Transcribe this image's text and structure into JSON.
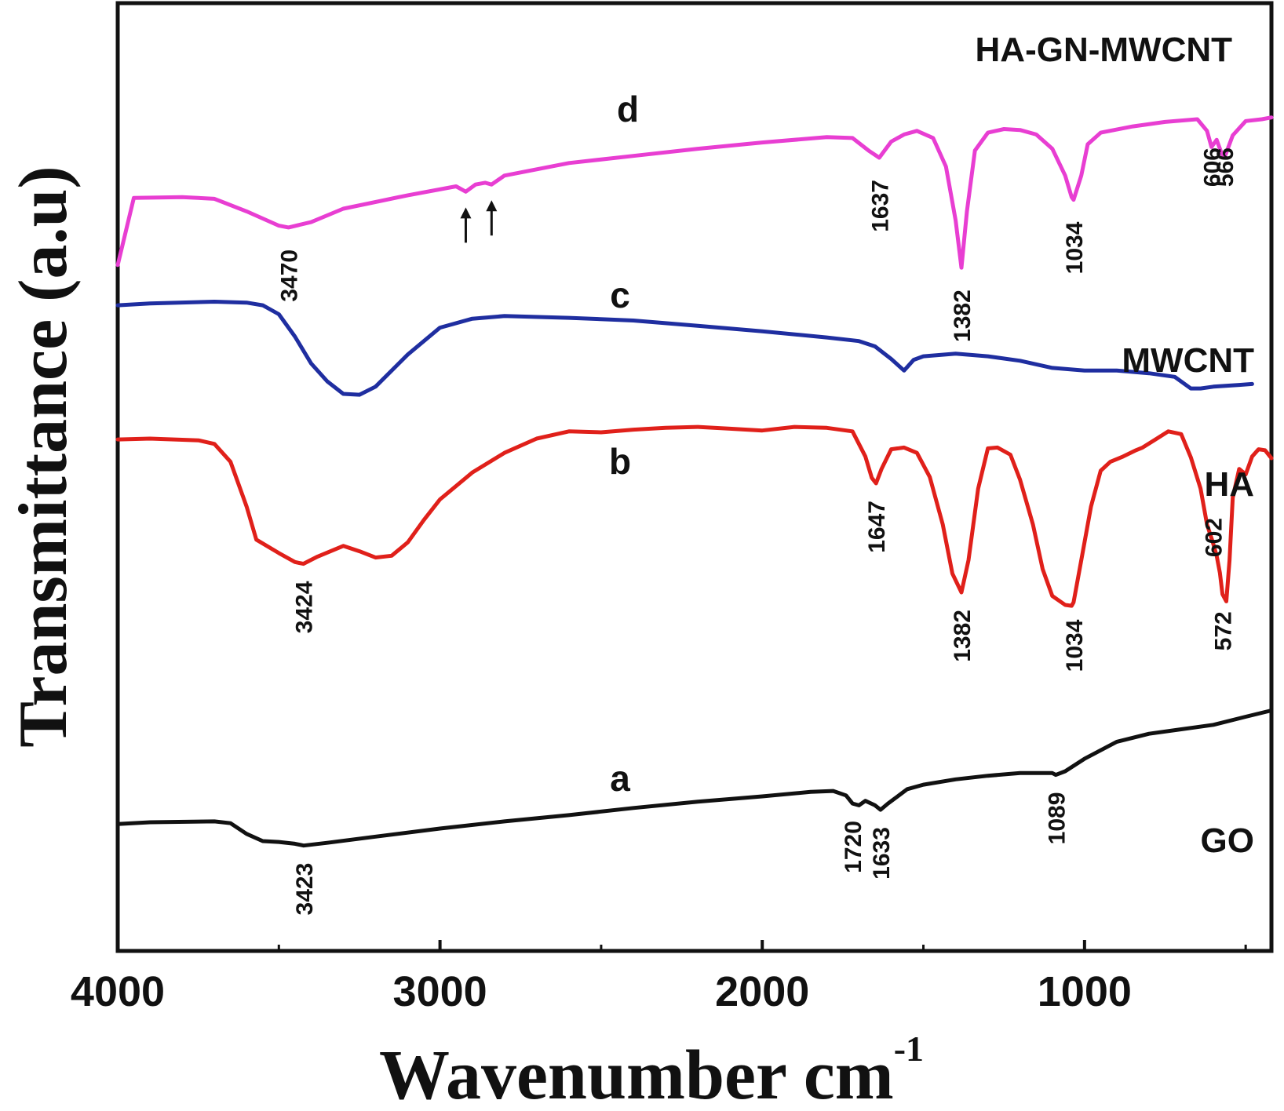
{
  "chart_data": {
    "type": "line",
    "title": "",
    "xlabel": "Wavenumber cm",
    "xlabel_superscript": "-1",
    "ylabel": "Transmittance (a.u)",
    "xlim": [
      4000,
      420
    ],
    "x_reversed": true,
    "ylim": [
      0,
      100
    ],
    "grid": false,
    "x_ticks": [
      {
        "value": 4000,
        "label": "4000"
      },
      {
        "value": 3000,
        "label": "3000"
      },
      {
        "value": 2000,
        "label": "2000"
      },
      {
        "value": 1000,
        "label": "1000"
      }
    ],
    "series": [
      {
        "id": "d",
        "letter": "d",
        "name": "HA-GN-MWCNT",
        "color": "#e83ed2",
        "points": [
          [
            4000,
            73
          ],
          [
            3950,
            80.5
          ],
          [
            3800,
            80.6
          ],
          [
            3700,
            80.4
          ],
          [
            3600,
            79
          ],
          [
            3500,
            77.4
          ],
          [
            3470,
            77.2
          ],
          [
            3400,
            77.8
          ],
          [
            3300,
            79.3
          ],
          [
            3100,
            80.8
          ],
          [
            2950,
            81.8
          ],
          [
            2920,
            81.2
          ],
          [
            2890,
            82
          ],
          [
            2860,
            82.2
          ],
          [
            2840,
            82
          ],
          [
            2800,
            83
          ],
          [
            2600,
            84.4
          ],
          [
            2400,
            85.2
          ],
          [
            2200,
            86
          ],
          [
            2000,
            86.7
          ],
          [
            1800,
            87.3
          ],
          [
            1720,
            87.2
          ],
          [
            1670,
            85.8
          ],
          [
            1637,
            85
          ],
          [
            1600,
            86.8
          ],
          [
            1560,
            87.6
          ],
          [
            1520,
            88
          ],
          [
            1470,
            87.2
          ],
          [
            1430,
            84
          ],
          [
            1400,
            78
          ],
          [
            1382,
            72.7
          ],
          [
            1365,
            79
          ],
          [
            1340,
            85.8
          ],
          [
            1300,
            87.8
          ],
          [
            1250,
            88.2
          ],
          [
            1200,
            88.1
          ],
          [
            1150,
            87.6
          ],
          [
            1100,
            86
          ],
          [
            1060,
            83
          ],
          [
            1040,
            80.6
          ],
          [
            1034,
            80.3
          ],
          [
            1010,
            83
          ],
          [
            990,
            86.5
          ],
          [
            950,
            87.8
          ],
          [
            850,
            88.5
          ],
          [
            750,
            89
          ],
          [
            650,
            89.3
          ],
          [
            620,
            88
          ],
          [
            606,
            86.2
          ],
          [
            590,
            87
          ],
          [
            575,
            85.5
          ],
          [
            566,
            85
          ],
          [
            540,
            87.5
          ],
          [
            500,
            89.1
          ],
          [
            450,
            89.3
          ],
          [
            420,
            89.5
          ]
        ]
      },
      {
        "id": "c",
        "letter": "c",
        "name": "MWCNT",
        "color": "#1f2ea0",
        "points": [
          [
            4000,
            68.5
          ],
          [
            3900,
            68.7
          ],
          [
            3700,
            68.9
          ],
          [
            3600,
            68.8
          ],
          [
            3550,
            68.5
          ],
          [
            3500,
            67.5
          ],
          [
            3450,
            65
          ],
          [
            3400,
            62
          ],
          [
            3350,
            60
          ],
          [
            3300,
            58.6
          ],
          [
            3250,
            58.5
          ],
          [
            3200,
            59.4
          ],
          [
            3100,
            63
          ],
          [
            3000,
            66
          ],
          [
            2900,
            67
          ],
          [
            2800,
            67.3
          ],
          [
            2600,
            67.1
          ],
          [
            2400,
            66.8
          ],
          [
            2200,
            66.2
          ],
          [
            2000,
            65.6
          ],
          [
            1800,
            64.9
          ],
          [
            1700,
            64.5
          ],
          [
            1650,
            63.9
          ],
          [
            1600,
            62.5
          ],
          [
            1560,
            61.2
          ],
          [
            1530,
            62.4
          ],
          [
            1500,
            62.8
          ],
          [
            1400,
            63.1
          ],
          [
            1300,
            62.8
          ],
          [
            1200,
            62.3
          ],
          [
            1100,
            61.5
          ],
          [
            1000,
            61.2
          ],
          [
            900,
            61.2
          ],
          [
            800,
            60.9
          ],
          [
            720,
            60.5
          ],
          [
            670,
            59.2
          ],
          [
            640,
            59.2
          ],
          [
            600,
            59.4
          ],
          [
            520,
            59.6
          ],
          [
            480,
            59.7
          ]
        ]
      },
      {
        "id": "b",
        "letter": "b",
        "name": "HA",
        "color": "#e0201a",
        "points": [
          [
            4000,
            53.5
          ],
          [
            3900,
            53.6
          ],
          [
            3750,
            53.4
          ],
          [
            3700,
            53
          ],
          [
            3650,
            51
          ],
          [
            3600,
            46
          ],
          [
            3570,
            42.3
          ],
          [
            3500,
            40.8
          ],
          [
            3450,
            39.8
          ],
          [
            3424,
            39.6
          ],
          [
            3380,
            40.4
          ],
          [
            3300,
            41.6
          ],
          [
            3250,
            41
          ],
          [
            3200,
            40.3
          ],
          [
            3150,
            40.5
          ],
          [
            3100,
            42
          ],
          [
            3050,
            44.5
          ],
          [
            3000,
            46.8
          ],
          [
            2900,
            49.8
          ],
          [
            2800,
            52
          ],
          [
            2700,
            53.6
          ],
          [
            2600,
            54.4
          ],
          [
            2500,
            54.3
          ],
          [
            2400,
            54.6
          ],
          [
            2300,
            54.8
          ],
          [
            2200,
            54.9
          ],
          [
            2100,
            54.7
          ],
          [
            2000,
            54.5
          ],
          [
            1900,
            54.9
          ],
          [
            1800,
            54.8
          ],
          [
            1720,
            54.4
          ],
          [
            1680,
            51.6
          ],
          [
            1660,
            49.2
          ],
          [
            1647,
            48.6
          ],
          [
            1630,
            50.2
          ],
          [
            1600,
            52.4
          ],
          [
            1560,
            52.6
          ],
          [
            1520,
            52
          ],
          [
            1480,
            49.3
          ],
          [
            1440,
            44
          ],
          [
            1410,
            38.5
          ],
          [
            1382,
            36.4
          ],
          [
            1360,
            40
          ],
          [
            1330,
            48
          ],
          [
            1300,
            52.5
          ],
          [
            1270,
            52.6
          ],
          [
            1230,
            51.8
          ],
          [
            1200,
            49
          ],
          [
            1160,
            44
          ],
          [
            1130,
            39
          ],
          [
            1100,
            36
          ],
          [
            1060,
            35
          ],
          [
            1040,
            34.9
          ],
          [
            1034,
            35.3
          ],
          [
            1010,
            40
          ],
          [
            980,
            46
          ],
          [
            950,
            50
          ],
          [
            920,
            51
          ],
          [
            880,
            51.6
          ],
          [
            840,
            52.3
          ],
          [
            820,
            52.6
          ],
          [
            780,
            53.5
          ],
          [
            740,
            54.4
          ],
          [
            700,
            54.1
          ],
          [
            670,
            51.5
          ],
          [
            640,
            48
          ],
          [
            620,
            44
          ],
          [
            602,
            42
          ],
          [
            590,
            40.5
          ],
          [
            580,
            38.6
          ],
          [
            572,
            36.2
          ],
          [
            560,
            35.4
          ],
          [
            550,
            40
          ],
          [
            540,
            47
          ],
          [
            520,
            50.2
          ],
          [
            500,
            49.6
          ],
          [
            480,
            51.6
          ],
          [
            460,
            52.4
          ],
          [
            440,
            52.3
          ],
          [
            420,
            51.4
          ]
        ]
      },
      {
        "id": "a",
        "letter": "a",
        "name": "GO",
        "color": "#111111",
        "points": [
          [
            4000,
            10.5
          ],
          [
            3900,
            10.7
          ],
          [
            3700,
            10.8
          ],
          [
            3650,
            10.6
          ],
          [
            3600,
            9.4
          ],
          [
            3550,
            8.6
          ],
          [
            3500,
            8.5
          ],
          [
            3450,
            8.3
          ],
          [
            3423,
            8.1
          ],
          [
            3350,
            8.4
          ],
          [
            3200,
            9.1
          ],
          [
            3000,
            10
          ],
          [
            2800,
            10.8
          ],
          [
            2600,
            11.5
          ],
          [
            2400,
            12.3
          ],
          [
            2200,
            13
          ],
          [
            2000,
            13.6
          ],
          [
            1850,
            14.1
          ],
          [
            1780,
            14.2
          ],
          [
            1740,
            13.7
          ],
          [
            1720,
            12.8
          ],
          [
            1700,
            12.6
          ],
          [
            1680,
            13.1
          ],
          [
            1650,
            12.6
          ],
          [
            1633,
            12.1
          ],
          [
            1610,
            12.8
          ],
          [
            1580,
            13.6
          ],
          [
            1550,
            14.4
          ],
          [
            1500,
            14.9
          ],
          [
            1400,
            15.5
          ],
          [
            1300,
            15.9
          ],
          [
            1200,
            16.2
          ],
          [
            1100,
            16.2
          ],
          [
            1089,
            16
          ],
          [
            1060,
            16.4
          ],
          [
            1000,
            17.8
          ],
          [
            900,
            19.7
          ],
          [
            800,
            20.6
          ],
          [
            700,
            21.1
          ],
          [
            600,
            21.6
          ],
          [
            500,
            22.5
          ],
          [
            420,
            23.2
          ]
        ]
      }
    ],
    "curve_letters": [
      {
        "series": "d",
        "text": "d"
      },
      {
        "series": "c",
        "text": "c"
      },
      {
        "series": "b",
        "text": "b"
      },
      {
        "series": "a",
        "text": "a"
      }
    ],
    "series_labels": [
      {
        "series": "d",
        "text": "HA-GN-MWCNT"
      },
      {
        "series": "c",
        "text": "MWCNT"
      },
      {
        "series": "b",
        "text": "HA"
      },
      {
        "series": "a",
        "text": "GO"
      }
    ],
    "peak_annotations": [
      {
        "series": "d",
        "x": 3470,
        "text": "3470"
      },
      {
        "series": "d",
        "x": 1637,
        "text": "1637"
      },
      {
        "series": "d",
        "x": 1382,
        "text": "1382"
      },
      {
        "series": "d",
        "x": 1034,
        "text": "1034"
      },
      {
        "series": "d",
        "x": 606,
        "text": "606"
      },
      {
        "series": "d",
        "x": 566,
        "text": "566"
      },
      {
        "series": "b",
        "x": 3424,
        "text": "3424"
      },
      {
        "series": "b",
        "x": 1647,
        "text": "1647"
      },
      {
        "series": "b",
        "x": 1382,
        "text": "1382"
      },
      {
        "series": "b",
        "x": 1034,
        "text": "1034"
      },
      {
        "series": "b",
        "x": 602,
        "text": "602"
      },
      {
        "series": "b",
        "x": 572,
        "text": "572"
      },
      {
        "series": "a",
        "x": 3423,
        "text": "3423"
      },
      {
        "series": "a",
        "x": 1720,
        "text": "1720"
      },
      {
        "series": "a",
        "x": 1633,
        "text": "1633"
      },
      {
        "series": "a",
        "x": 1089,
        "text": "1089"
      }
    ],
    "arrow_markers": [
      {
        "series": "d",
        "x": 2920
      },
      {
        "series": "d",
        "x": 2840
      }
    ]
  }
}
